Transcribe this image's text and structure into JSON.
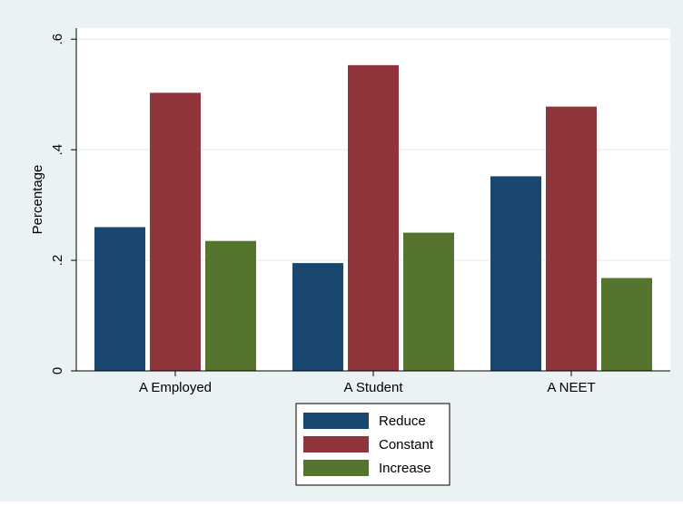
{
  "chart_data": {
    "type": "bar",
    "title": "",
    "xlabel": "",
    "ylabel": "Percentage",
    "ylim": [
      0,
      0.62
    ],
    "yticks": [
      {
        "value": 0,
        "label": "0"
      },
      {
        "value": 0.2,
        "label": ".2"
      },
      {
        "value": 0.4,
        "label": ".4"
      },
      {
        "value": 0.6,
        "label": ".6"
      }
    ],
    "categories": [
      "A Employed",
      "A Student",
      "A NEET"
    ],
    "series": [
      {
        "name": "Reduce",
        "color": "#1a476f",
        "values": [
          0.26,
          0.195,
          0.352
        ]
      },
      {
        "name": "Constant",
        "color": "#90353b",
        "values": [
          0.503,
          0.553,
          0.478
        ]
      },
      {
        "name": "Increase",
        "color": "#55752f",
        "values": [
          0.235,
          0.25,
          0.168
        ]
      }
    ],
    "grid": true,
    "legend_position": "bottom",
    "background_color": "#eaf2f3",
    "plot_background_color": "#ffffff"
  }
}
